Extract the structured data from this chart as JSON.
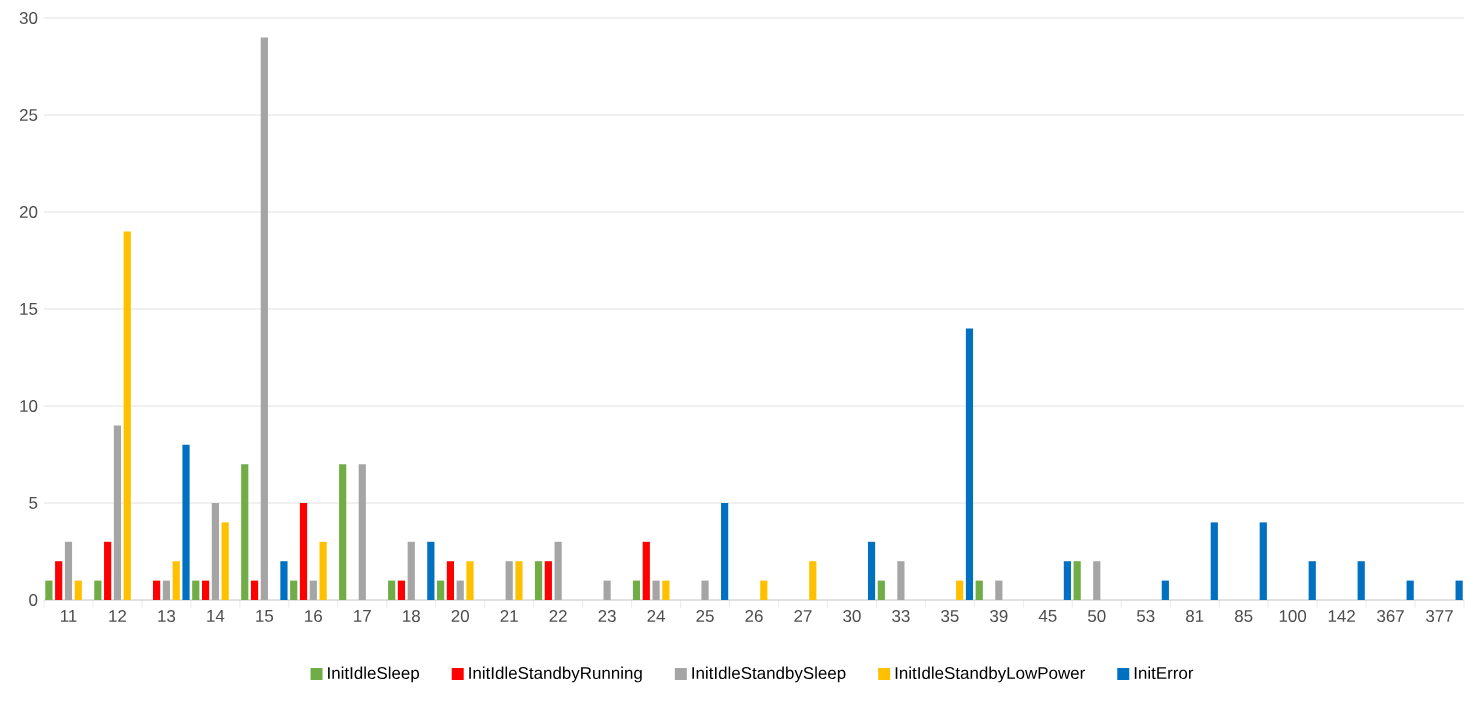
{
  "chart_data": {
    "type": "bar",
    "categories": [
      "11",
      "12",
      "13",
      "14",
      "15",
      "16",
      "17",
      "18",
      "20",
      "21",
      "22",
      "23",
      "24",
      "25",
      "26",
      "27",
      "30",
      "33",
      "35",
      "39",
      "45",
      "50",
      "53",
      "81",
      "85",
      "100",
      "142",
      "367",
      "377"
    ],
    "series": [
      {
        "name": "InitIdleSleep",
        "color": "#70ad47",
        "values": [
          1,
          1,
          null,
          1,
          7,
          1,
          7,
          1,
          1,
          null,
          2,
          null,
          1,
          null,
          null,
          null,
          null,
          1,
          null,
          1,
          null,
          2,
          null,
          null,
          null,
          null,
          null,
          null,
          null
        ]
      },
      {
        "name": "InitIdleStandbyRunning",
        "color": "#ff0000",
        "values": [
          2,
          3,
          1,
          1,
          1,
          5,
          null,
          1,
          2,
          null,
          2,
          null,
          3,
          null,
          null,
          null,
          null,
          null,
          null,
          null,
          null,
          null,
          null,
          null,
          null,
          null,
          null,
          null,
          null
        ]
      },
      {
        "name": "InitIdleStandbySleep",
        "color": "#a5a5a5",
        "values": [
          3,
          9,
          1,
          5,
          29,
          1,
          7,
          3,
          1,
          2,
          3,
          1,
          1,
          1,
          null,
          null,
          null,
          2,
          null,
          1,
          null,
          2,
          null,
          null,
          null,
          null,
          null,
          null,
          null
        ]
      },
      {
        "name": "InitIdleStandbyLowPower",
        "color": "#ffc000",
        "values": [
          1,
          19,
          2,
          4,
          null,
          3,
          null,
          null,
          2,
          2,
          null,
          null,
          1,
          null,
          1,
          2,
          null,
          null,
          1,
          null,
          null,
          null,
          null,
          null,
          null,
          null,
          null,
          null,
          null
        ]
      },
      {
        "name": "InitError",
        "color": "#0070c0",
        "values": [
          null,
          null,
          8,
          null,
          2,
          null,
          null,
          3,
          null,
          null,
          null,
          null,
          null,
          5,
          null,
          null,
          3,
          null,
          14,
          null,
          2,
          null,
          1,
          4,
          4,
          2,
          2,
          1,
          1
        ]
      }
    ],
    "ylim": [
      0,
      30
    ],
    "yticks": [
      0,
      5,
      10,
      15,
      20,
      25,
      30
    ],
    "grid": "y",
    "legend": "bottom"
  }
}
